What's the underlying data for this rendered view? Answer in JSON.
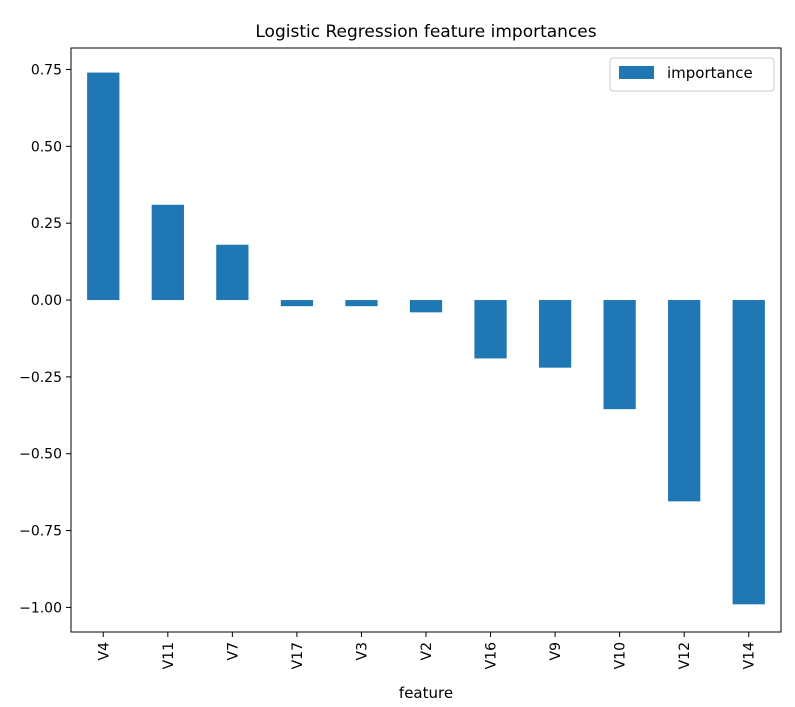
{
  "chart_data": {
    "type": "bar",
    "title": "Logistic Regression feature importances",
    "xlabel": "feature",
    "ylabel": "",
    "categories": [
      "V4",
      "V11",
      "V7",
      "V17",
      "V3",
      "V2",
      "V16",
      "V9",
      "V10",
      "V12",
      "V14"
    ],
    "series": [
      {
        "name": "importance",
        "color": "#1f77b4",
        "values": [
          0.74,
          0.31,
          0.18,
          -0.02,
          -0.02,
          -0.04,
          -0.19,
          -0.22,
          -0.355,
          -0.655,
          -0.99
        ]
      }
    ],
    "ylim": [
      -1.08,
      0.82
    ],
    "yticks": [
      0.75,
      0.5,
      0.25,
      0.0,
      -0.25,
      -0.5,
      -0.75,
      -1.0
    ],
    "ytick_labels": [
      "0.75",
      "0.50",
      "0.25",
      "0.00",
      "−0.25",
      "−0.50",
      "−0.75",
      "−1.00"
    ],
    "legend": "top-right",
    "grid": false
  }
}
